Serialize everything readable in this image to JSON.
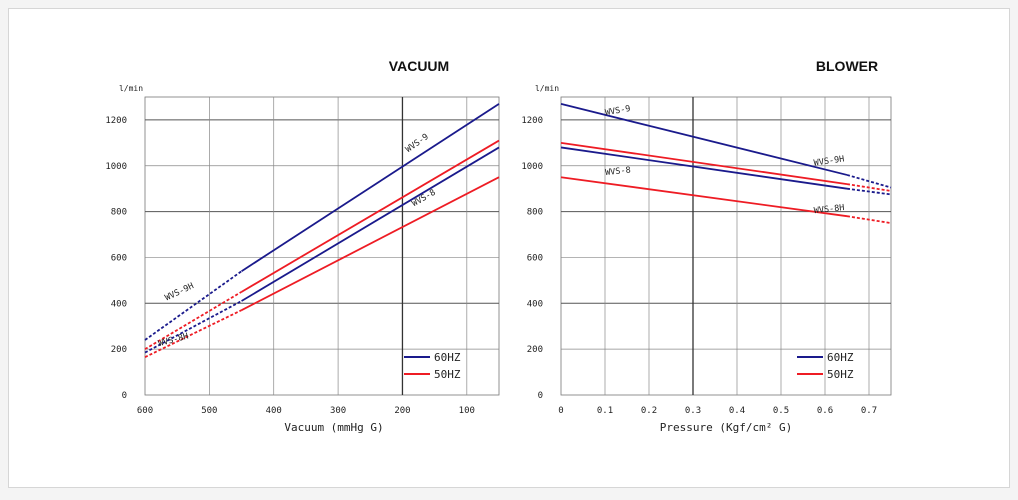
{
  "chart_data": [
    {
      "type": "line",
      "title": "VACUUM",
      "unit_label": "l/min",
      "xlabel": "Vacuum (mmHg G)",
      "x_reversed": true,
      "xlim": [
        600,
        50
      ],
      "ylim": [
        0,
        1300
      ],
      "xticks": [
        600,
        500,
        400,
        300,
        200,
        100
      ],
      "yticks": [
        0,
        200,
        400,
        600,
        800,
        1000,
        1200
      ],
      "grid": true,
      "legend": {
        "position": "bottom-right",
        "entries": [
          {
            "label": "60HZ",
            "color": "#1a1a8c"
          },
          {
            "label": "50HZ",
            "color": "#ee1c24"
          }
        ]
      },
      "series": [
        {
          "name": "WVS-9",
          "freq": "60HZ",
          "color": "#1a1a8c",
          "solid": [
            [
              450,
              540
            ],
            [
              50,
              1270
            ]
          ],
          "dashed": [
            [
              600,
              240
            ],
            [
              450,
              540
            ]
          ]
        },
        {
          "name": "WVS-9H",
          "freq": "50HZ",
          "color": "#ee1c24",
          "solid": [
            [
              450,
              450
            ],
            [
              50,
              1110
            ]
          ],
          "dashed": [
            [
              600,
              200
            ],
            [
              450,
              450
            ]
          ]
        },
        {
          "name": "WVS-8",
          "freq": "60HZ",
          "color": "#1a1a8c",
          "solid": [
            [
              450,
              410
            ],
            [
              50,
              1080
            ]
          ],
          "dashed": [
            [
              600,
              185
            ],
            [
              450,
              410
            ]
          ]
        },
        {
          "name": "WVS-8H",
          "freq": "50HZ",
          "color": "#ee1c24",
          "solid": [
            [
              450,
              370
            ],
            [
              50,
              950
            ]
          ],
          "dashed": [
            [
              600,
              165
            ],
            [
              450,
              370
            ]
          ]
        }
      ],
      "annotations": [
        {
          "text": "WVS-9",
          "x": 175,
          "y": 1090,
          "rotate": -35
        },
        {
          "text": "WVS-8",
          "x": 165,
          "y": 850,
          "rotate": -30
        },
        {
          "text": "WVS-9H",
          "x": 545,
          "y": 440,
          "rotate": -25
        },
        {
          "text": "WVS-8H",
          "x": 555,
          "y": 230,
          "rotate": -15
        }
      ]
    },
    {
      "type": "line",
      "title": "BLOWER",
      "unit_label": "l/min",
      "xlabel": "Pressure (Kgf/cm² G)",
      "xlim": [
        0,
        0.75
      ],
      "ylim": [
        0,
        1300
      ],
      "xticks": [
        0,
        0.1,
        0.2,
        0.3,
        0.4,
        0.5,
        0.6,
        0.7
      ],
      "yticks": [
        0,
        200,
        400,
        600,
        800,
        1000,
        1200
      ],
      "grid": true,
      "legend": {
        "position": "bottom-right",
        "entries": [
          {
            "label": "60HZ",
            "color": "#1a1a8c"
          },
          {
            "label": "50HZ",
            "color": "#ee1c24"
          }
        ]
      },
      "series": [
        {
          "name": "WVS-9",
          "freq": "60HZ",
          "color": "#1a1a8c",
          "solid": [
            [
              0,
              1270
            ],
            [
              0.65,
              960
            ]
          ],
          "dashed": [
            [
              0.65,
              960
            ],
            [
              0.75,
              905
            ]
          ]
        },
        {
          "name": "WVS-9H",
          "freq": "50HZ",
          "color": "#ee1c24",
          "solid": [
            [
              0,
              1100
            ],
            [
              0.65,
              920
            ]
          ],
          "dashed": [
            [
              0.65,
              920
            ],
            [
              0.75,
              890
            ]
          ]
        },
        {
          "name": "WVS-8",
          "freq": "60HZ",
          "color": "#1a1a8c",
          "solid": [
            [
              0,
              1080
            ],
            [
              0.65,
              900
            ]
          ],
          "dashed": [
            [
              0.65,
              900
            ],
            [
              0.75,
              875
            ]
          ]
        },
        {
          "name": "WVS-8H",
          "freq": "50HZ",
          "color": "#ee1c24",
          "solid": [
            [
              0,
              950
            ],
            [
              0.65,
              780
            ]
          ],
          "dashed": [
            [
              0.65,
              780
            ],
            [
              0.75,
              750
            ]
          ]
        }
      ],
      "annotations": [
        {
          "text": "WVS-9",
          "x": 0.13,
          "y": 1230,
          "rotate": -10
        },
        {
          "text": "WVS-8",
          "x": 0.13,
          "y": 965,
          "rotate": -6
        },
        {
          "text": "WVS-9H",
          "x": 0.61,
          "y": 1010,
          "rotate": -8
        },
        {
          "text": "WVS-8H",
          "x": 0.61,
          "y": 800,
          "rotate": -6
        }
      ]
    }
  ]
}
